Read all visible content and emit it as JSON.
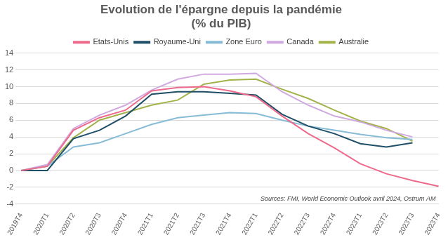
{
  "chart_data": {
    "type": "line",
    "title": [
      "Evolution de l'épargne depuis la pandémie",
      "(% du PIB)"
    ],
    "annotation": "Sources: FMI, World Economic Outlook avril 2024, Ostrum AM",
    "categories": [
      "2019T4",
      "2020T1",
      "2020T2",
      "2020T3",
      "2020T4",
      "2021T1",
      "2021T2",
      "2021T3",
      "2021T4",
      "2022T1",
      "2022T2",
      "2022T3",
      "2022T4",
      "2023T1",
      "2023T2",
      "2023T3",
      "2023T4"
    ],
    "series": [
      {
        "name": "Etats-Unis",
        "color": "#ee6a8c",
        "values": [
          0,
          0.5,
          4.8,
          6.3,
          7.2,
          9.5,
          9.9,
          10.0,
          9.5,
          8.8,
          6.5,
          4.4,
          2.7,
          0.8,
          -0.4,
          -1.2,
          -1.9
        ]
      },
      {
        "name": "Royaume-Uni",
        "color": "#1f4e67",
        "values": [
          0,
          0,
          3.8,
          4.8,
          6.5,
          9.1,
          9.4,
          9.4,
          9.2,
          9.0,
          6.7,
          5.3,
          4.4,
          3.2,
          2.8,
          3.3,
          null
        ]
      },
      {
        "name": "Zone Euro",
        "color": "#86bcd6",
        "values": [
          0,
          0.5,
          2.8,
          3.3,
          4.4,
          5.5,
          6.3,
          6.6,
          6.9,
          6.8,
          6.0,
          5.3,
          4.8,
          4.3,
          3.9,
          3.7,
          null
        ]
      },
      {
        "name": "Canada",
        "color": "#cfa9df",
        "values": [
          0,
          0.7,
          5.0,
          6.6,
          7.8,
          9.6,
          10.9,
          11.5,
          11.5,
          11.6,
          9.4,
          7.8,
          6.5,
          5.8,
          4.8,
          4.0,
          null
        ]
      },
      {
        "name": "Australie",
        "color": "#a4b24a",
        "values": [
          0,
          0.5,
          3.9,
          6.0,
          6.9,
          7.8,
          8.4,
          10.3,
          10.8,
          10.9,
          9.7,
          8.6,
          7.2,
          5.9,
          5.0,
          3.5,
          null
        ]
      }
    ],
    "ylim": [
      -4,
      14
    ],
    "yticks": [
      -4,
      -2,
      0,
      2,
      4,
      6,
      8,
      10,
      12,
      14
    ],
    "grid": true,
    "legend": "top"
  }
}
